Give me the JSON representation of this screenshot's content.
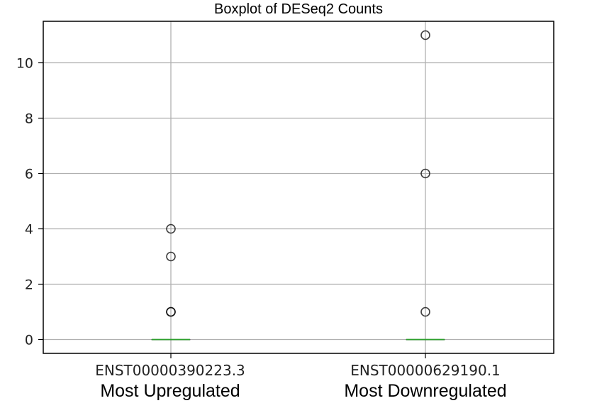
{
  "chart_data": {
    "type": "box",
    "title": "Boxplot of DESeq2 Counts",
    "xlabel": "",
    "ylabel": "",
    "ylim": [
      -0.5,
      11.5
    ],
    "yticks": [
      0,
      2,
      4,
      6,
      8,
      10
    ],
    "grid": true,
    "categories": [
      "ENST00000390223.3",
      "ENST00000629190.1"
    ],
    "group_labels": [
      "Most Upregulated",
      "Most Downregulated"
    ],
    "series": [
      {
        "category": "ENST00000390223.3",
        "median": 0,
        "q1": 0,
        "q3": 0,
        "whisker_low": 0,
        "whisker_high": 0,
        "outliers": [
          1,
          1,
          3,
          4
        ]
      },
      {
        "category": "ENST00000629190.1",
        "median": 0,
        "q1": 0,
        "q3": 0,
        "whisker_low": 0,
        "whisker_high": 0,
        "outliers": [
          1,
          6,
          11
        ]
      }
    ],
    "colors": {
      "median": "#2ca02c",
      "grid": "#b0b0b0",
      "outlier_edge": "#000000"
    }
  }
}
